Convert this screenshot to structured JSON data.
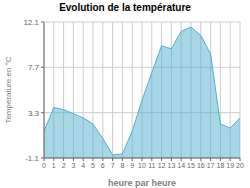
{
  "chart_data": {
    "type": "area",
    "title": "Evolution de la température",
    "xlabel": "heure par heure",
    "ylabel": "Température en °C",
    "x": [
      0,
      1,
      2,
      3,
      4,
      5,
      6,
      7,
      8,
      9,
      10,
      11,
      12,
      13,
      14,
      15,
      16,
      17,
      18,
      19,
      20
    ],
    "values": [
      1.5,
      3.8,
      3.6,
      3.2,
      2.8,
      2.2,
      0.8,
      -0.8,
      -0.7,
      1.5,
      4.5,
      7.2,
      9.8,
      9.5,
      11.2,
      11.6,
      10.8,
      9.0,
      2.2,
      1.8,
      2.8
    ],
    "color": "#50b0d0",
    "xlim": [
      0,
      20
    ],
    "xticks": [
      0,
      1,
      2,
      3,
      4,
      5,
      6,
      7,
      8,
      9,
      10,
      11,
      12,
      13,
      14,
      15,
      16,
      17,
      18,
      19,
      20
    ],
    "ylim": [
      -1.1,
      12.1
    ],
    "yticks": [
      -1.1,
      3.3,
      7.7,
      12.1
    ],
    "grid": true
  }
}
